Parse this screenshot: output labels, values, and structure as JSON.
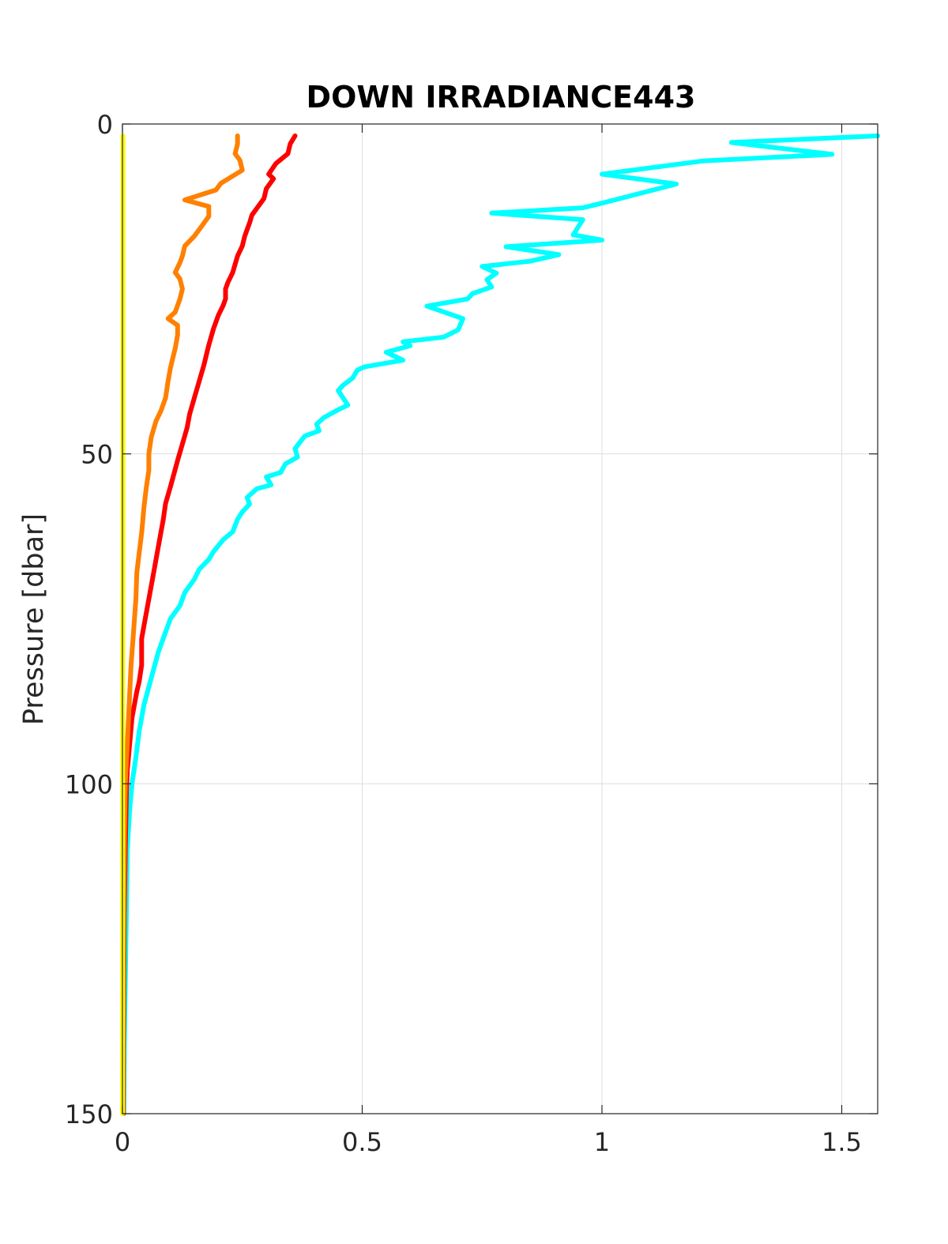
{
  "chart_data": {
    "type": "line",
    "title": "DOWN IRRADIANCE443",
    "xlabel": "",
    "ylabel": "Pressure [dbar]",
    "xlim": [
      0,
      1.575
    ],
    "ylim": [
      0,
      150
    ],
    "y_reversed": true,
    "grid": true,
    "x_ticks": [
      {
        "value": 0,
        "label": "0"
      },
      {
        "value": 0.5,
        "label": "0.5"
      },
      {
        "value": 1,
        "label": "1"
      },
      {
        "value": 1.5,
        "label": "1.5"
      }
    ],
    "y_ticks": [
      {
        "value": 0,
        "label": "0"
      },
      {
        "value": 50,
        "label": "50"
      },
      {
        "value": 100,
        "label": "100"
      },
      {
        "value": 150,
        "label": "150"
      }
    ],
    "series": [
      {
        "color": "#00ffff",
        "points": [
          [
            1.575,
            1.8
          ],
          [
            1.27,
            2.8
          ],
          [
            1.48,
            4.6
          ],
          [
            1.21,
            5.6
          ],
          [
            1.0,
            7.6
          ],
          [
            1.155,
            9.1
          ],
          [
            1.0,
            12.0
          ],
          [
            0.96,
            12.7
          ],
          [
            0.77,
            13.5
          ],
          [
            0.96,
            14.5
          ],
          [
            0.94,
            16.8
          ],
          [
            1.0,
            17.6
          ],
          [
            0.8,
            18.6
          ],
          [
            0.91,
            19.8
          ],
          [
            0.85,
            20.8
          ],
          [
            0.75,
            21.6
          ],
          [
            0.78,
            22.6
          ],
          [
            0.76,
            23.6
          ],
          [
            0.77,
            24.7
          ],
          [
            0.73,
            25.7
          ],
          [
            0.72,
            26.5
          ],
          [
            0.635,
            27.6
          ],
          [
            0.71,
            29.5
          ],
          [
            0.7,
            31.2
          ],
          [
            0.67,
            32.3
          ],
          [
            0.585,
            33.0
          ],
          [
            0.6,
            33.6
          ],
          [
            0.55,
            34.6
          ],
          [
            0.585,
            35.8
          ],
          [
            0.505,
            36.8
          ],
          [
            0.49,
            37.3
          ],
          [
            0.48,
            38.5
          ],
          [
            0.46,
            39.6
          ],
          [
            0.45,
            40.4
          ],
          [
            0.47,
            42.6
          ],
          [
            0.45,
            43.3
          ],
          [
            0.42,
            44.5
          ],
          [
            0.405,
            45.5
          ],
          [
            0.41,
            46.5
          ],
          [
            0.38,
            47.3
          ],
          [
            0.36,
            49.2
          ],
          [
            0.365,
            50.5
          ],
          [
            0.34,
            51.5
          ],
          [
            0.33,
            52.8
          ],
          [
            0.3,
            53.5
          ],
          [
            0.31,
            54.7
          ],
          [
            0.28,
            55.3
          ],
          [
            0.26,
            56.6
          ],
          [
            0.265,
            57.6
          ],
          [
            0.25,
            58.8
          ],
          [
            0.24,
            59.9
          ],
          [
            0.23,
            61.8
          ],
          [
            0.21,
            63.0
          ],
          [
            0.19,
            64.8
          ],
          [
            0.18,
            66.0
          ],
          [
            0.16,
            67.5
          ],
          [
            0.15,
            69.0
          ],
          [
            0.13,
            71.0
          ],
          [
            0.12,
            73.0
          ],
          [
            0.1,
            75.0
          ],
          [
            0.09,
            77.0
          ],
          [
            0.075,
            80.0
          ],
          [
            0.06,
            84.0
          ],
          [
            0.045,
            88.0
          ],
          [
            0.035,
            92.0
          ],
          [
            0.028,
            96.0
          ],
          [
            0.02,
            100.0
          ],
          [
            0.015,
            104.0
          ],
          [
            0.01,
            110.0
          ],
          [
            0.008,
            120.0
          ],
          [
            0.006,
            130.0
          ],
          [
            0.004,
            140.0
          ],
          [
            0.003,
            150.0
          ]
        ]
      },
      {
        "color": "#ff0000",
        "points": [
          [
            0.36,
            1.8
          ],
          [
            0.35,
            3.0
          ],
          [
            0.345,
            4.5
          ],
          [
            0.32,
            6.0
          ],
          [
            0.305,
            7.6
          ],
          [
            0.315,
            8.3
          ],
          [
            0.3,
            9.8
          ],
          [
            0.295,
            11.3
          ],
          [
            0.28,
            12.8
          ],
          [
            0.27,
            13.8
          ],
          [
            0.265,
            15.0
          ],
          [
            0.26,
            16.0
          ],
          [
            0.255,
            17.0
          ],
          [
            0.25,
            18.5
          ],
          [
            0.24,
            20.0
          ],
          [
            0.23,
            22.5
          ],
          [
            0.22,
            24.0
          ],
          [
            0.215,
            25.0
          ],
          [
            0.215,
            26.5
          ],
          [
            0.21,
            27.5
          ],
          [
            0.2,
            29.0
          ],
          [
            0.19,
            31.0
          ],
          [
            0.18,
            33.5
          ],
          [
            0.175,
            35.0
          ],
          [
            0.17,
            36.5
          ],
          [
            0.16,
            39.0
          ],
          [
            0.15,
            41.5
          ],
          [
            0.14,
            44.0
          ],
          [
            0.135,
            46.0
          ],
          [
            0.125,
            48.5
          ],
          [
            0.115,
            51.0
          ],
          [
            0.1,
            55.0
          ],
          [
            0.09,
            57.5
          ],
          [
            0.085,
            60.0
          ],
          [
            0.075,
            64.0
          ],
          [
            0.065,
            68.0
          ],
          [
            0.055,
            72.0
          ],
          [
            0.045,
            76.0
          ],
          [
            0.04,
            78.0
          ],
          [
            0.04,
            82.0
          ],
          [
            0.035,
            84.5
          ],
          [
            0.03,
            86.0
          ],
          [
            0.02,
            90.0
          ],
          [
            0.015,
            94.0
          ],
          [
            0.01,
            98.0
          ],
          [
            0.008,
            102.0
          ],
          [
            0.006,
            110.0
          ],
          [
            0.004,
            120.0
          ],
          [
            0.003,
            130.0
          ],
          [
            0.002,
            140.0
          ],
          [
            0.002,
            150.0
          ]
        ]
      },
      {
        "color": "#ff8000",
        "points": [
          [
            0.24,
            1.8
          ],
          [
            0.24,
            3.0
          ],
          [
            0.235,
            4.5
          ],
          [
            0.245,
            5.5
          ],
          [
            0.25,
            7.0
          ],
          [
            0.205,
            9.0
          ],
          [
            0.195,
            10.0
          ],
          [
            0.13,
            11.5
          ],
          [
            0.18,
            12.5
          ],
          [
            0.18,
            14.0
          ],
          [
            0.165,
            15.5
          ],
          [
            0.15,
            17.0
          ],
          [
            0.13,
            18.5
          ],
          [
            0.125,
            20.0
          ],
          [
            0.12,
            21.0
          ],
          [
            0.11,
            22.5
          ],
          [
            0.12,
            23.5
          ],
          [
            0.125,
            25.0
          ],
          [
            0.12,
            26.5
          ],
          [
            0.11,
            28.5
          ],
          [
            0.095,
            29.5
          ],
          [
            0.115,
            30.5
          ],
          [
            0.115,
            32.0
          ],
          [
            0.11,
            34.0
          ],
          [
            0.105,
            35.5
          ],
          [
            0.1,
            37.0
          ],
          [
            0.095,
            39.0
          ],
          [
            0.09,
            41.5
          ],
          [
            0.08,
            43.5
          ],
          [
            0.07,
            45.0
          ],
          [
            0.06,
            47.5
          ],
          [
            0.055,
            50.0
          ],
          [
            0.055,
            52.5
          ],
          [
            0.05,
            55.0
          ],
          [
            0.045,
            58.0
          ],
          [
            0.04,
            62.0
          ],
          [
            0.035,
            65.0
          ],
          [
            0.03,
            68.0
          ],
          [
            0.028,
            72.0
          ],
          [
            0.022,
            78.0
          ],
          [
            0.018,
            82.0
          ],
          [
            0.014,
            88.0
          ],
          [
            0.01,
            94.0
          ],
          [
            0.006,
            100.0
          ],
          [
            0.004,
            108.0
          ],
          [
            0.003,
            118.0
          ],
          [
            0.002,
            130.0
          ],
          [
            0.001,
            140.0
          ],
          [
            0.001,
            150.0
          ]
        ]
      },
      {
        "color": "#ffff00",
        "points": [
          [
            0.001,
            1.8
          ],
          [
            0.001,
            30.0
          ],
          [
            0.001,
            60.0
          ],
          [
            0.0005,
            90.0
          ],
          [
            0.0003,
            120.0
          ],
          [
            0.0002,
            150.0
          ]
        ]
      }
    ]
  }
}
